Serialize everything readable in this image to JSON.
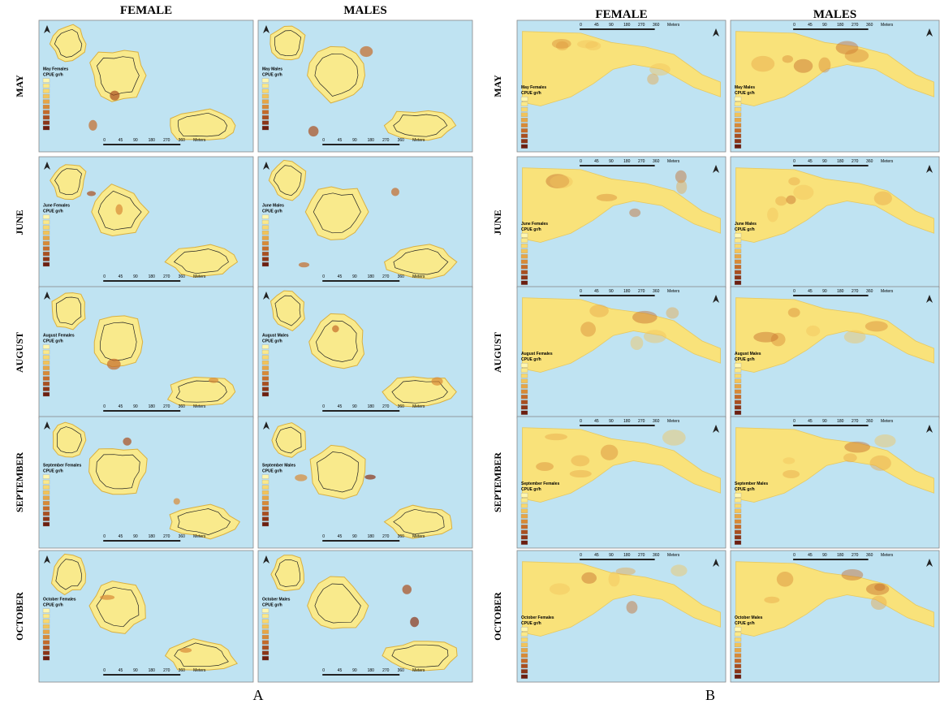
{
  "panels": [
    {
      "label": "A",
      "columns": [
        "FEMALE",
        "MALES"
      ],
      "rows": [
        {
          "month": "MAY",
          "maps": [
            {
              "title": "May Females",
              "unit": "CPUE gr/h"
            },
            {
              "title": "May Males",
              "unit": "CPUE gr/h"
            }
          ]
        },
        {
          "month": "JUNE",
          "maps": [
            {
              "title": "June Females",
              "unit": "CPUE gr/h"
            },
            {
              "title": "June Males",
              "unit": "CPUE gr/h"
            }
          ]
        },
        {
          "month": "AUGUST",
          "maps": [
            {
              "title": "August Females",
              "unit": "CPUE gr/h"
            },
            {
              "title": "August Males",
              "unit": "CPUE gr/h"
            }
          ]
        },
        {
          "month": "SEPTEMBER",
          "maps": [
            {
              "title": "September Females",
              "unit": "CPUE gr/h"
            },
            {
              "title": "September Males",
              "unit": "CPUE gr/h"
            }
          ]
        },
        {
          "month": "OCTOBER",
          "maps": [
            {
              "title": "October Females",
              "unit": "CPUE gr/h"
            },
            {
              "title": "October Males",
              "unit": "CPUE gr/h"
            }
          ]
        }
      ],
      "scale": [
        "0",
        "45",
        "90",
        "180",
        "270",
        "360",
        "Meters"
      ]
    },
    {
      "label": "B",
      "columns": [
        "FEMALE",
        "MALES"
      ],
      "rows": [
        {
          "month": "MAY",
          "maps": [
            {
              "title": "May Females",
              "unit": "CPUE gr/h"
            },
            {
              "title": "May Males",
              "unit": "CPUE gr/h"
            }
          ]
        },
        {
          "month": "JUNE",
          "maps": [
            {
              "title": "June Females",
              "unit": "CPUE gr/h"
            },
            {
              "title": "June Males",
              "unit": "CPUE gr/h"
            }
          ]
        },
        {
          "month": "AUGUST",
          "maps": [
            {
              "title": "August Females",
              "unit": "CPUE gr/h"
            },
            {
              "title": "August Males",
              "unit": "CPUE gr/h"
            }
          ]
        },
        {
          "month": "SEPTEMBER",
          "maps": [
            {
              "title": "September Females",
              "unit": "CPUE gr/h"
            },
            {
              "title": "September Males",
              "unit": "CPUE gr/h"
            }
          ]
        },
        {
          "month": "OCTOBER",
          "maps": [
            {
              "title": "October Females",
              "unit": "CPUE gr/h"
            },
            {
              "title": "October Males",
              "unit": "CPUE gr/h"
            }
          ]
        }
      ],
      "scale": [
        "0",
        "45",
        "90",
        "180",
        "270",
        "360",
        "Meters"
      ]
    }
  ]
}
